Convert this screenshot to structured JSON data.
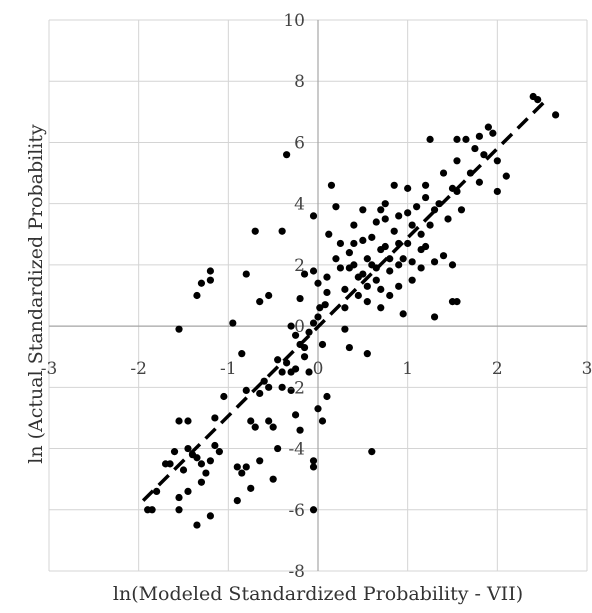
{
  "chart_data": {
    "type": "scatter",
    "title": "",
    "xlabel": "ln(Modeled Standardized Probability - VII)",
    "ylabel": "ln (Actual Standardized Probability",
    "xlim": [
      -3,
      3
    ],
    "ylim": [
      -8,
      10
    ],
    "x_ticks": [
      "-3",
      "-2",
      "-1",
      "0",
      "1",
      "2",
      "3"
    ],
    "y_ticks": [
      "-8",
      "-6",
      "-4",
      "-2",
      "0",
      "2",
      "4",
      "6",
      "8",
      "10"
    ],
    "x_tick_values": [
      -3,
      -2,
      -1,
      0,
      1,
      2,
      3
    ],
    "y_tick_values": [
      -8,
      -6,
      -4,
      -2,
      0,
      2,
      4,
      6,
      8,
      10
    ],
    "grid": true,
    "legend": "none",
    "marker_color": "#000000",
    "trendline": {
      "style": "dashed",
      "x": [
        -1.95,
        2.55
      ],
      "y": [
        -5.7,
        7.4
      ]
    },
    "points": [
      [
        -1.9,
        -6.0
      ],
      [
        -1.85,
        -6.0
      ],
      [
        -1.8,
        -5.4
      ],
      [
        -1.7,
        -4.5
      ],
      [
        -1.6,
        -4.1
      ],
      [
        -1.55,
        -3.1
      ],
      [
        -1.45,
        -3.1
      ],
      [
        -1.55,
        -5.6
      ],
      [
        -1.55,
        -6.0
      ],
      [
        -1.5,
        -4.7
      ],
      [
        -1.45,
        -5.4
      ],
      [
        -1.4,
        -4.2
      ],
      [
        -1.35,
        -4.3
      ],
      [
        -1.3,
        -4.5
      ],
      [
        -1.3,
        -5.1
      ],
      [
        -1.25,
        -4.8
      ],
      [
        -1.35,
        -6.5
      ],
      [
        -1.2,
        -6.2
      ],
      [
        -1.15,
        -3.9
      ],
      [
        -1.1,
        -4.1
      ],
      [
        -1.15,
        -3.0
      ],
      [
        -1.05,
        -2.3
      ],
      [
        -1.55,
        -0.1
      ],
      [
        -1.35,
        1.0
      ],
      [
        -1.3,
        1.4
      ],
      [
        -1.2,
        1.5
      ],
      [
        -1.2,
        1.8
      ],
      [
        -0.95,
        0.1
      ],
      [
        -0.85,
        -0.9
      ],
      [
        -0.8,
        -2.1
      ],
      [
        -0.75,
        -3.1
      ],
      [
        -0.7,
        -3.3
      ],
      [
        -0.65,
        -2.2
      ],
      [
        -0.6,
        -1.8
      ],
      [
        -0.55,
        -2.0
      ],
      [
        -0.9,
        -4.6
      ],
      [
        -0.85,
        -4.8
      ],
      [
        -0.8,
        -4.6
      ],
      [
        -0.75,
        -5.3
      ],
      [
        -0.65,
        -4.4
      ],
      [
        -0.9,
        -5.7
      ],
      [
        -0.55,
        -3.1
      ],
      [
        -0.8,
        1.7
      ],
      [
        -0.7,
        3.1
      ],
      [
        -0.65,
        0.8
      ],
      [
        -0.55,
        1.0
      ],
      [
        -0.45,
        -1.1
      ],
      [
        -0.4,
        -1.5
      ],
      [
        -0.4,
        -2.0
      ],
      [
        -0.35,
        -1.2
      ],
      [
        -0.3,
        -1.5
      ],
      [
        -0.3,
        -2.1
      ],
      [
        -0.25,
        -1.4
      ],
      [
        -0.25,
        -2.9
      ],
      [
        -0.2,
        -3.4
      ],
      [
        -0.15,
        -1.0
      ],
      [
        -0.1,
        -1.5
      ],
      [
        -0.05,
        -4.4
      ],
      [
        -0.05,
        -4.6
      ],
      [
        -0.05,
        -6.0
      ],
      [
        -0.4,
        3.1
      ],
      [
        -0.35,
        5.6
      ],
      [
        -0.3,
        0.0
      ],
      [
        -0.25,
        -0.3
      ],
      [
        -0.2,
        -0.6
      ],
      [
        -0.15,
        -0.7
      ],
      [
        -0.1,
        -0.2
      ],
      [
        -0.05,
        0.1
      ],
      [
        0.0,
        0.3
      ],
      [
        0.02,
        0.6
      ],
      [
        0.05,
        -0.6
      ],
      [
        0.08,
        0.7
      ],
      [
        0.1,
        1.1
      ],
      [
        0.1,
        1.6
      ],
      [
        0.0,
        1.4
      ],
      [
        -0.05,
        1.8
      ],
      [
        -0.15,
        1.7
      ],
      [
        -0.2,
        0.9
      ],
      [
        0.12,
        3.0
      ],
      [
        0.15,
        4.6
      ],
      [
        0.2,
        3.9
      ],
      [
        0.2,
        2.2
      ],
      [
        0.25,
        1.9
      ],
      [
        0.3,
        1.2
      ],
      [
        0.3,
        -0.1
      ],
      [
        0.35,
        -0.7
      ],
      [
        0.3,
        0.6
      ],
      [
        -0.05,
        3.6
      ],
      [
        0.35,
        2.4
      ],
      [
        0.4,
        2.7
      ],
      [
        0.4,
        2.0
      ],
      [
        0.45,
        1.6
      ],
      [
        0.45,
        1.0
      ],
      [
        0.5,
        1.7
      ],
      [
        0.5,
        2.8
      ],
      [
        0.5,
        3.8
      ],
      [
        0.55,
        0.8
      ],
      [
        0.55,
        -0.9
      ],
      [
        0.55,
        2.2
      ],
      [
        0.6,
        2.9
      ],
      [
        0.6,
        2.0
      ],
      [
        0.65,
        1.5
      ],
      [
        0.65,
        1.9
      ],
      [
        0.7,
        2.5
      ],
      [
        0.7,
        1.2
      ],
      [
        0.7,
        0.6
      ],
      [
        0.75,
        2.6
      ],
      [
        0.75,
        3.5
      ],
      [
        0.75,
        4.0
      ],
      [
        0.8,
        1.8
      ],
      [
        0.8,
        2.2
      ],
      [
        0.85,
        3.1
      ],
      [
        0.85,
        4.6
      ],
      [
        0.9,
        1.3
      ],
      [
        0.9,
        2.0
      ],
      [
        0.9,
        3.6
      ],
      [
        0.95,
        0.4
      ],
      [
        0.95,
        2.2
      ],
      [
        1.0,
        2.7
      ],
      [
        1.0,
        3.7
      ],
      [
        1.0,
        4.5
      ],
      [
        1.05,
        3.3
      ],
      [
        1.05,
        1.5
      ],
      [
        1.1,
        3.9
      ],
      [
        1.15,
        3.0
      ],
      [
        1.15,
        1.9
      ],
      [
        1.2,
        2.6
      ],
      [
        1.2,
        4.2
      ],
      [
        1.25,
        3.3
      ],
      [
        1.25,
        6.1
      ],
      [
        1.3,
        3.8
      ],
      [
        1.3,
        2.1
      ],
      [
        1.35,
        4.0
      ],
      [
        1.4,
        5.0
      ],
      [
        1.4,
        2.3
      ],
      [
        1.45,
        3.5
      ],
      [
        1.5,
        4.5
      ],
      [
        1.5,
        2.0
      ],
      [
        1.55,
        6.1
      ],
      [
        1.55,
        5.4
      ],
      [
        1.55,
        4.4
      ],
      [
        1.6,
        3.8
      ],
      [
        1.5,
        0.8
      ],
      [
        1.55,
        0.8
      ],
      [
        1.65,
        6.1
      ],
      [
        1.7,
        5.0
      ],
      [
        1.75,
        5.8
      ],
      [
        1.8,
        6.2
      ],
      [
        1.8,
        4.7
      ],
      [
        1.85,
        5.6
      ],
      [
        1.9,
        6.5
      ],
      [
        1.95,
        6.3
      ],
      [
        2.0,
        5.4
      ],
      [
        2.0,
        4.4
      ],
      [
        2.1,
        4.9
      ],
      [
        1.3,
        0.3
      ],
      [
        0.6,
        -4.1
      ],
      [
        0.05,
        -3.1
      ],
      [
        0.0,
        -2.7
      ],
      [
        -0.45,
        -4.0
      ],
      [
        -0.5,
        -5.0
      ],
      [
        0.1,
        -2.3
      ],
      [
        2.4,
        7.5
      ],
      [
        2.45,
        7.4
      ],
      [
        2.65,
        6.9
      ],
      [
        1.2,
        4.6
      ],
      [
        0.65,
        3.4
      ],
      [
        0.4,
        3.3
      ],
      [
        0.25,
        2.7
      ],
      [
        0.9,
        2.7
      ],
      [
        0.55,
        1.3
      ],
      [
        0.35,
        1.9
      ],
      [
        1.05,
        2.1
      ],
      [
        0.8,
        1.0
      ],
      [
        1.15,
        2.5
      ],
      [
        0.7,
        3.8
      ],
      [
        -1.2,
        -4.4
      ],
      [
        -1.65,
        -4.5
      ],
      [
        -1.45,
        -4.0
      ],
      [
        -0.5,
        -3.3
      ]
    ]
  }
}
